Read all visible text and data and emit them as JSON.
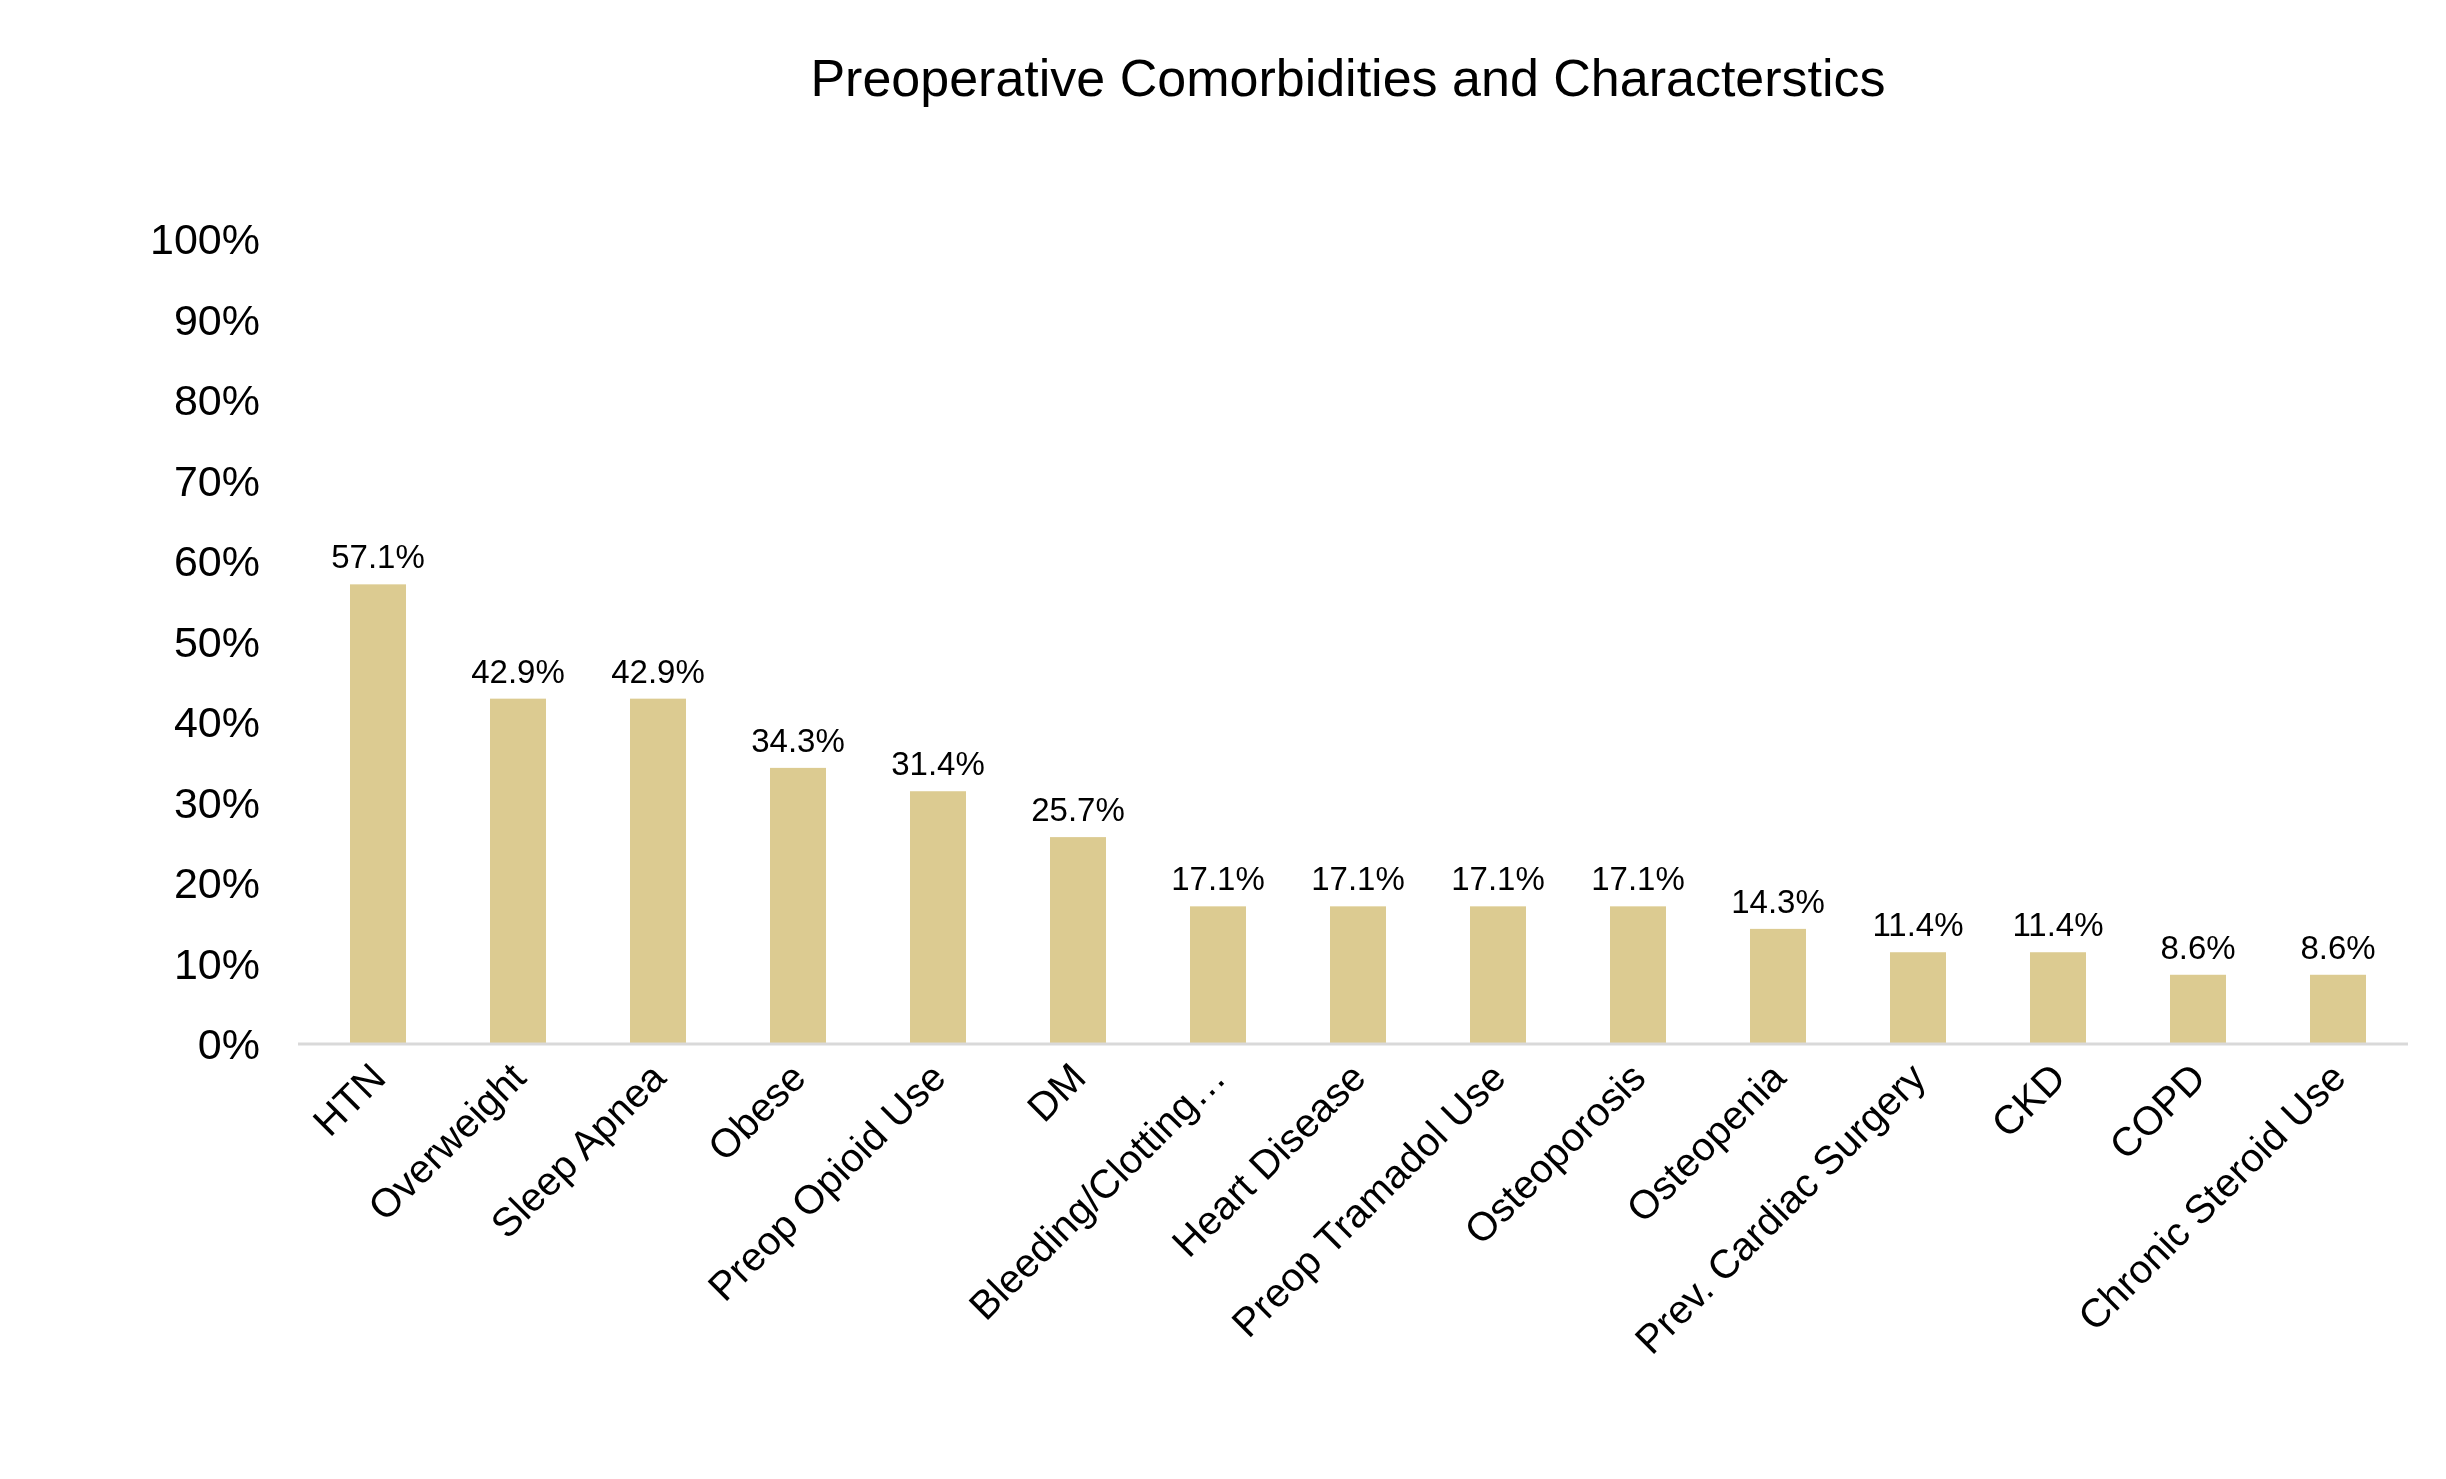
{
  "chart_data": {
    "type": "bar",
    "title": "Preoperative Comorbidities and Characterstics",
    "categories": [
      "HTN",
      "Overweight",
      "Sleep Apnea",
      "Obese",
      "Preop Opioid Use",
      "DM",
      "Bleeding/Clotting…",
      "Heart Disease",
      "Preop Tramadol Use",
      "Osteoporosis",
      "Osteopenia",
      "Prev. Cardiac Surgery",
      "CKD",
      "COPD",
      "Chronic Steroid Use"
    ],
    "values": [
      57.1,
      42.9,
      42.9,
      34.3,
      31.4,
      25.7,
      17.1,
      17.1,
      17.1,
      17.1,
      14.3,
      11.4,
      11.4,
      8.6,
      8.6
    ],
    "value_labels": [
      "57.1%",
      "42.9%",
      "42.9%",
      "34.3%",
      "31.4%",
      "25.7%",
      "17.1%",
      "17.1%",
      "17.1%",
      "17.1%",
      "14.3%",
      "11.4%",
      "11.4%",
      "8.6%",
      "8.6%"
    ],
    "color": "#dccb91",
    "ylim": [
      0,
      100
    ],
    "yticks": [
      {
        "value": 0,
        "label": "0%"
      },
      {
        "value": 10,
        "label": "10%"
      },
      {
        "value": 20,
        "label": "20%"
      },
      {
        "value": 30,
        "label": "30%"
      },
      {
        "value": 40,
        "label": "40%"
      },
      {
        "value": 50,
        "label": "50%"
      },
      {
        "value": 60,
        "label": "60%"
      },
      {
        "value": 70,
        "label": "70%"
      },
      {
        "value": 80,
        "label": "80%"
      },
      {
        "value": 90,
        "label": "90%"
      },
      {
        "value": 100,
        "label": "100%"
      }
    ],
    "grid": false
  }
}
